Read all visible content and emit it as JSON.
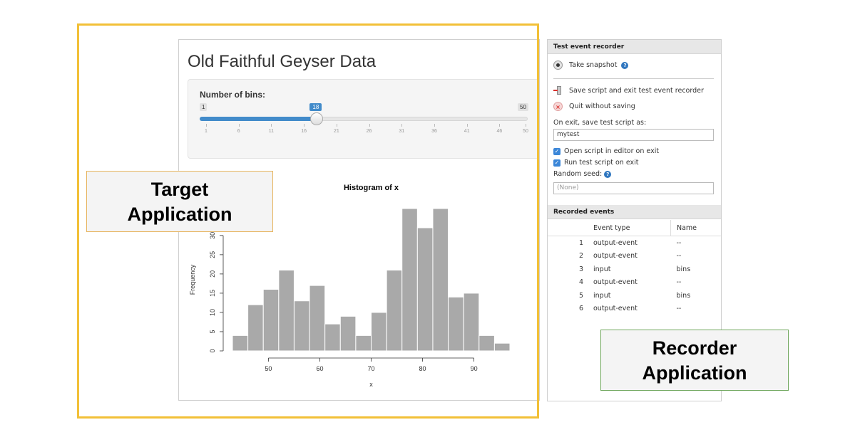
{
  "target_app": {
    "title": "Old Faithful Geyser Data",
    "slider": {
      "label": "Number of bins:",
      "min": 1,
      "max": 50,
      "value": 18,
      "tick_labels": [
        "1",
        "6",
        "11",
        "16",
        "21",
        "26",
        "31",
        "36",
        "41",
        "46",
        "50"
      ],
      "fill_color": "#428bca"
    }
  },
  "chart_data": {
    "type": "bar",
    "title": "Histogram of x",
    "xlabel": "x",
    "ylabel": "Frequency",
    "bin_edges": [
      43,
      46,
      49,
      52,
      55,
      58,
      61,
      64,
      67,
      70,
      73,
      76,
      79,
      82,
      85,
      88,
      91,
      94,
      97
    ],
    "values": [
      4,
      12,
      16,
      21,
      13,
      17,
      7,
      9,
      4,
      10,
      21,
      37,
      32,
      37,
      14,
      15,
      4,
      2
    ],
    "xticks": [
      50,
      60,
      70,
      80,
      90
    ],
    "yticks": [
      0,
      5,
      10,
      15,
      20,
      25,
      30
    ],
    "ylim": [
      0,
      37
    ],
    "bar_color": "#a9a9a9"
  },
  "recorder": {
    "section_title": "Test event recorder",
    "take_snapshot": "Take snapshot",
    "save_exit": "Save script and exit test event recorder",
    "quit": "Quit without saving",
    "on_exit_label": "On exit, save test script as:",
    "script_name": "mytest",
    "open_in_editor": "Open script in editor on exit",
    "run_on_exit": "Run test script on exit",
    "random_seed_label": "Random seed:",
    "random_seed_placeholder": "(None)",
    "events_title": "Recorded events",
    "columns": [
      "Event type",
      "Name"
    ],
    "events": [
      {
        "num": "1",
        "type": "output-event",
        "name": "--"
      },
      {
        "num": "2",
        "type": "output-event",
        "name": "--"
      },
      {
        "num": "3",
        "type": "input",
        "name": "bins"
      },
      {
        "num": "4",
        "type": "output-event",
        "name": "--"
      },
      {
        "num": "5",
        "type": "input",
        "name": "bins"
      },
      {
        "num": "6",
        "type": "output-event",
        "name": "--"
      }
    ]
  },
  "labels": {
    "target_line1": "Target",
    "target_line2": "Application",
    "recorder_line1": "Recorder",
    "recorder_line2": "Application"
  }
}
